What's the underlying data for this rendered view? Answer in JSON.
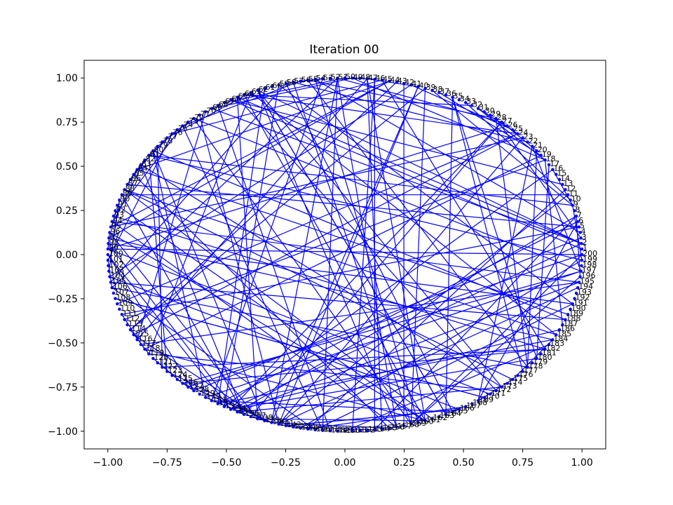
{
  "chart_data": {
    "type": "scatter",
    "title": "Iteration 00",
    "xlabel": "",
    "ylabel": "",
    "xlim": [
      -1.1,
      1.1
    ],
    "ylim": [
      -1.1,
      1.1
    ],
    "xticks": [
      -1.0,
      -0.75,
      -0.5,
      -0.25,
      0.0,
      0.25,
      0.5,
      0.75,
      1.0
    ],
    "yticks": [
      -1.0,
      -0.75,
      -0.5,
      -0.25,
      0.0,
      0.25,
      0.5,
      0.75,
      1.0
    ],
    "xtick_labels": [
      "−1.00",
      "−0.75",
      "−0.50",
      "−0.25",
      "0.00",
      "0.25",
      "0.50",
      "0.75",
      "1.00"
    ],
    "ytick_labels": [
      "−1.00",
      "−0.75",
      "−0.50",
      "−0.25",
      "0.00",
      "0.25",
      "0.50",
      "0.75",
      "1.00"
    ],
    "grid": false,
    "nodes": {
      "count": 200,
      "layout": "circle",
      "color": "#0000ff",
      "label_color": "#000000"
    },
    "edges": {
      "color": "#0000ff",
      "count": 200
    }
  }
}
